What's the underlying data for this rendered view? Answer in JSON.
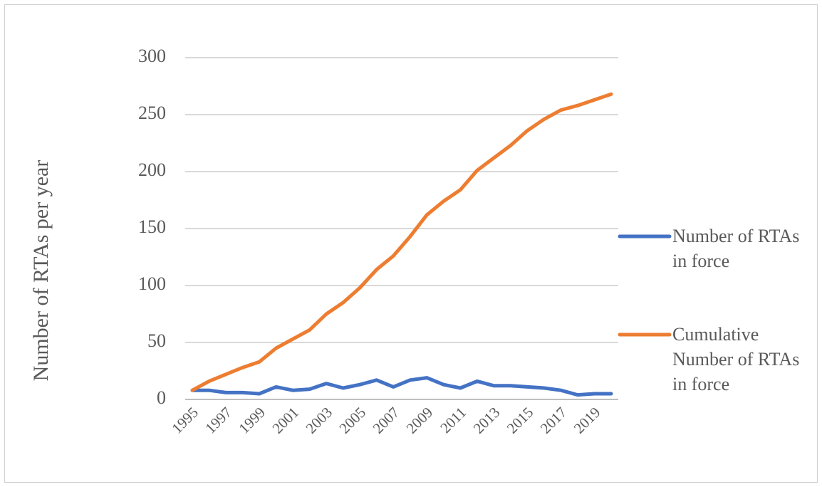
{
  "chart_data": {
    "type": "line",
    "y_label": "Number of RTAs per year",
    "categories": [
      "1995",
      null,
      "1997",
      null,
      "1999",
      null,
      "2001",
      null,
      "2003",
      null,
      "2005",
      null,
      "2007",
      null,
      "2009",
      null,
      "2011",
      null,
      "2013",
      null,
      "2015",
      null,
      "2017",
      null,
      "2019",
      null
    ],
    "series": [
      {
        "name": "Number of RTAs in force",
        "color": "#4472c4",
        "values": [
          8,
          8,
          6,
          6,
          5,
          11,
          8,
          9,
          14,
          10,
          13,
          17,
          11,
          17,
          19,
          13,
          10,
          16,
          12,
          12,
          11,
          10,
          8,
          4,
          5,
          5
        ]
      },
      {
        "name": "Cumulative Number of RTAs in force",
        "color": "#ed7d31",
        "values": [
          8,
          16,
          22,
          28,
          33,
          45,
          53,
          61,
          75,
          85,
          98,
          114,
          126,
          143,
          162,
          174,
          184,
          201,
          212,
          223,
          236,
          246,
          254,
          258,
          263,
          268
        ]
      }
    ],
    "ylim": [
      0,
      300
    ],
    "yticks": [
      0,
      50,
      100,
      150,
      200,
      250,
      300
    ],
    "grid": true,
    "legend": "right"
  }
}
